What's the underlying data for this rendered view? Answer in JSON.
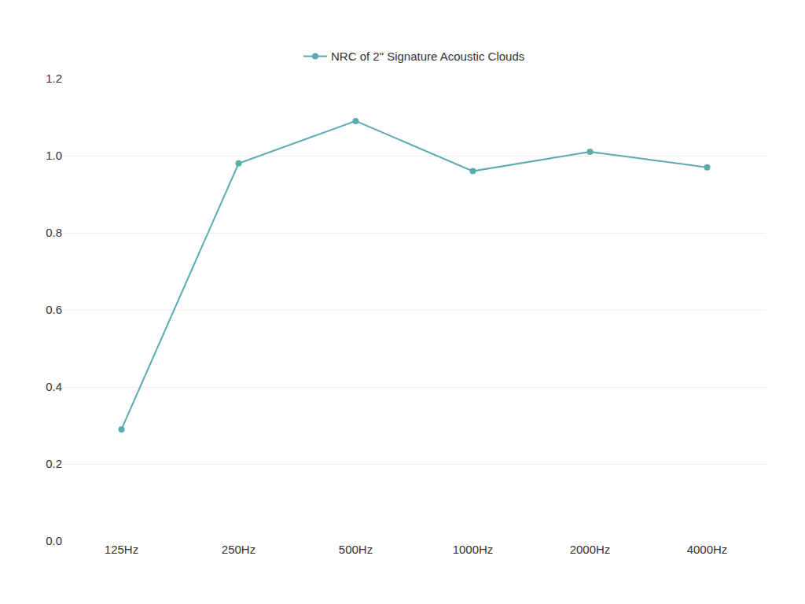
{
  "chart_data": {
    "type": "line",
    "categories": [
      "125Hz",
      "250Hz",
      "500Hz",
      "1000Hz",
      "2000Hz",
      "4000Hz"
    ],
    "series": [
      {
        "name": "NRC of 2\" Signature Acoustic Clouds",
        "color": "#5aabb0",
        "values": [
          0.29,
          0.98,
          1.09,
          0.96,
          1.01,
          0.97
        ],
        "marker": "circle"
      }
    ],
    "ylim": [
      0.0,
      1.2
    ],
    "yticks": [
      {
        "value": 0.0,
        "label": "0.0"
      },
      0.2,
      0.4,
      0.6,
      0.8,
      {
        "value": 1.0,
        "label": "1.0"
      },
      1.2
    ],
    "grid": true,
    "legend": "top"
  }
}
